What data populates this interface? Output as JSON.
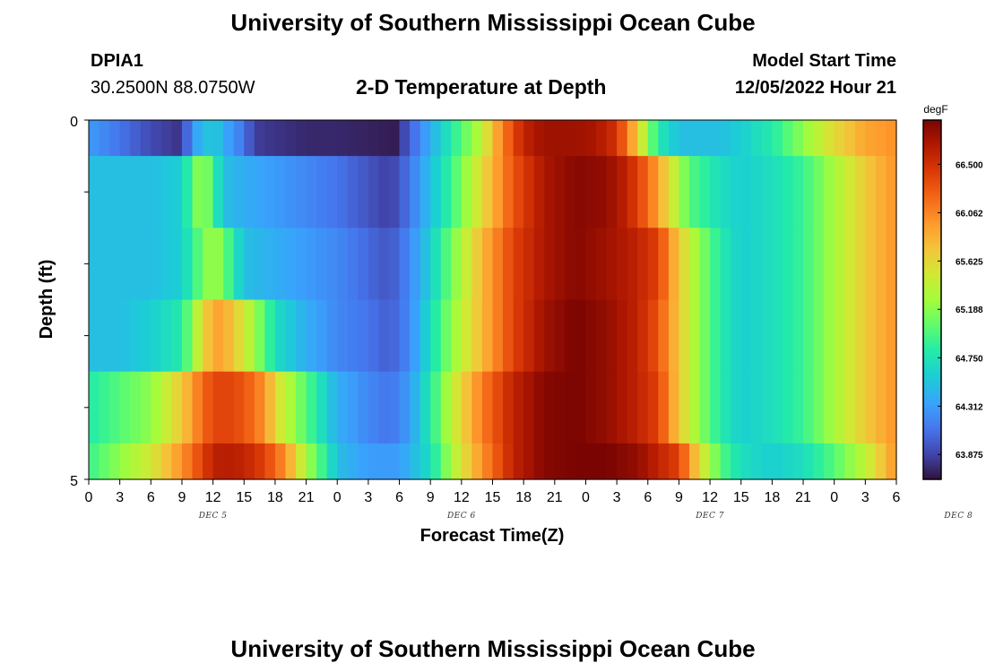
{
  "header": {
    "title": "University of Southern Mississippi Ocean Cube",
    "station_id": "DPIA1",
    "coords": "30.2500N  88.0750W",
    "subtitle": "2-D Temperature at Depth",
    "model_start_label": "Model Start Time",
    "model_start_value": "12/05/2022 Hour 21"
  },
  "footer": {
    "title": "University of Southern Mississippi Ocean Cube"
  },
  "chart_data": {
    "type": "heatmap",
    "title": "2-D Temperature at Depth",
    "xlabel": "Forecast Time(Z)",
    "ylabel": "Depth (ft)",
    "y_tick_labels": [
      "0",
      "5"
    ],
    "ylim": [
      0,
      5
    ],
    "x_hours_range": [
      0,
      78
    ],
    "x_tick_labels": [
      "0",
      "3",
      "6",
      "9",
      "12",
      "15",
      "18",
      "21",
      "0",
      "3",
      "6",
      "9",
      "12",
      "15",
      "18",
      "21",
      "0",
      "3",
      "6",
      "9",
      "12",
      "15",
      "18",
      "21",
      "0",
      "3",
      "6"
    ],
    "day_labels": [
      "DEC 5",
      "DEC 6",
      "DEC 7",
      "DEC 8"
    ],
    "colorbar": {
      "unit": "degF",
      "min": 63.65,
      "max": 66.9,
      "tick_labels": [
        "66.500",
        "66.062",
        "65.625",
        "65.188",
        "64.750",
        "64.312",
        "63.875"
      ],
      "tick_values": [
        66.5,
        66.062,
        65.625,
        65.188,
        64.75,
        64.312,
        63.875
      ]
    },
    "depth_layers": [
      "0-0.5",
      "0.5-1.5",
      "1.5-2.5",
      "2.5-3.5",
      "3.5-4.5",
      "4.5-5"
    ],
    "series": [
      {
        "hours": [
          0,
          3,
          6,
          9,
          10,
          12,
          13,
          15,
          16,
          18,
          21,
          24,
          27,
          29.5,
          30,
          32,
          35,
          38,
          40,
          42,
          44,
          47,
          49,
          51,
          53,
          54,
          55,
          57,
          59,
          61,
          63,
          66,
          69,
          72,
          75,
          78
        ],
        "values": [
          64.3,
          64.1,
          63.9,
          63.8,
          64.3,
          64.6,
          64.4,
          64.1,
          63.85,
          63.8,
          63.75,
          63.75,
          63.72,
          63.7,
          63.8,
          64.2,
          64.8,
          65.4,
          66.1,
          66.6,
          66.75,
          66.75,
          66.7,
          66.5,
          65.7,
          65.2,
          64.8,
          64.5,
          64.5,
          64.5,
          64.6,
          64.8,
          65.2,
          65.6,
          65.9,
          66.0
        ]
      },
      {
        "hours": [
          0,
          3,
          6,
          9,
          10,
          11,
          12,
          13,
          15,
          18,
          21,
          24,
          27,
          29,
          30,
          32,
          35,
          38,
          41,
          44,
          47,
          50,
          52,
          54,
          56,
          58,
          61,
          63,
          66,
          69,
          72,
          75,
          78
        ],
        "values": [
          64.5,
          64.5,
          64.5,
          64.6,
          65.0,
          65.3,
          64.9,
          64.5,
          64.4,
          64.3,
          64.2,
          64.1,
          63.95,
          63.85,
          63.95,
          64.3,
          64.9,
          65.6,
          66.3,
          66.7,
          66.85,
          66.8,
          66.6,
          66.2,
          65.6,
          65.0,
          64.7,
          64.6,
          64.7,
          64.9,
          65.3,
          65.7,
          66.0
        ]
      },
      {
        "hours": [
          0,
          3,
          6,
          9,
          11,
          12,
          13,
          14,
          15,
          18,
          21,
          24,
          27,
          29,
          31,
          33,
          35,
          38,
          41,
          44,
          47,
          50,
          53,
          55,
          57,
          59,
          61,
          63,
          66,
          69,
          72,
          75,
          78
        ],
        "values": [
          64.5,
          64.5,
          64.5,
          64.6,
          65.1,
          65.3,
          65.1,
          64.8,
          64.5,
          64.4,
          64.3,
          64.2,
          64.05,
          63.95,
          64.2,
          64.6,
          65.1,
          65.8,
          66.4,
          66.7,
          66.85,
          66.75,
          66.6,
          66.4,
          65.7,
          65.2,
          64.8,
          64.6,
          64.7,
          64.9,
          65.3,
          65.7,
          66.0
        ]
      },
      {
        "hours": [
          0,
          3,
          6,
          9,
          11,
          12,
          13,
          15,
          17,
          18,
          21,
          24,
          27,
          29,
          31,
          33,
          35,
          38,
          41,
          44,
          47,
          50,
          53,
          55,
          57,
          59,
          61,
          63,
          66,
          69,
          72,
          75,
          78
        ],
        "values": [
          64.5,
          64.5,
          64.6,
          64.8,
          65.6,
          65.9,
          65.9,
          65.5,
          65.0,
          64.7,
          64.4,
          64.2,
          64.1,
          64.0,
          64.2,
          64.7,
          65.2,
          65.8,
          66.4,
          66.75,
          66.9,
          66.8,
          66.6,
          66.3,
          65.7,
          65.2,
          64.8,
          64.6,
          64.7,
          64.9,
          65.3,
          65.7,
          66.0
        ]
      },
      {
        "hours": [
          0,
          3,
          6,
          9,
          11,
          12,
          13,
          15,
          17,
          18,
          21,
          23,
          24,
          27,
          29,
          31,
          33,
          35,
          38,
          41,
          44,
          47,
          50,
          53,
          55,
          57,
          59,
          61,
          63,
          66,
          69,
          72,
          75,
          78
        ],
        "values": [
          64.8,
          65.0,
          65.2,
          65.7,
          66.2,
          66.35,
          66.4,
          66.3,
          66.0,
          65.6,
          65.0,
          64.6,
          64.4,
          64.2,
          64.1,
          64.3,
          64.8,
          65.4,
          66.1,
          66.6,
          66.85,
          66.9,
          66.8,
          66.6,
          66.4,
          65.7,
          65.2,
          64.8,
          64.6,
          64.7,
          64.9,
          65.3,
          65.7,
          66.0
        ]
      },
      {
        "hours": [
          0,
          3,
          6,
          9,
          11,
          12,
          13,
          15,
          17,
          19,
          21,
          23,
          24,
          27,
          30,
          33,
          35,
          38,
          41,
          44,
          47,
          49,
          50,
          53,
          55,
          57,
          59,
          61,
          63,
          66,
          69,
          72,
          75,
          78
        ],
        "values": [
          64.9,
          65.2,
          65.5,
          66.0,
          66.4,
          66.6,
          66.65,
          66.6,
          66.4,
          66.0,
          65.3,
          64.8,
          64.5,
          64.3,
          64.3,
          64.7,
          65.3,
          66.0,
          66.6,
          66.85,
          66.9,
          66.9,
          66.9,
          66.8,
          66.6,
          66.4,
          65.6,
          65.0,
          64.7,
          64.6,
          64.7,
          65.0,
          65.4,
          66.0
        ]
      }
    ]
  }
}
